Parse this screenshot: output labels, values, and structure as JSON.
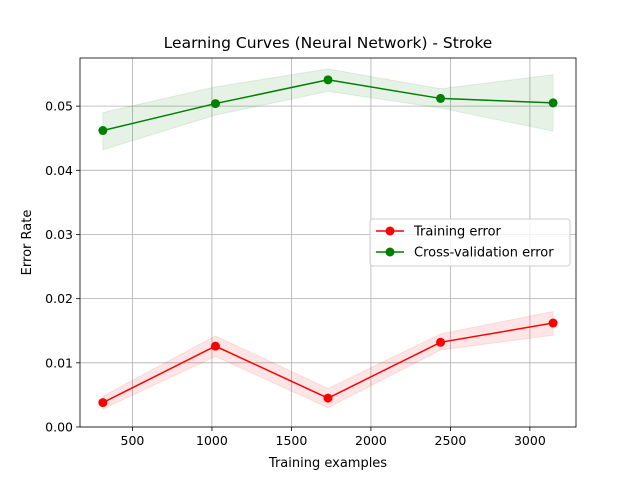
{
  "chart_data": {
    "type": "line",
    "title": "Learning Curves (Neural Network) - Stroke",
    "xlabel": "Training examples",
    "ylabel": "Error Rate",
    "xlim": [
      170,
      3290
    ],
    "ylim": [
      0,
      0.0575
    ],
    "x_ticks": [
      500,
      1000,
      1500,
      2000,
      2500,
      3000
    ],
    "x_tick_labels": [
      "500",
      "1000",
      "1500",
      "2000",
      "2500",
      "3000"
    ],
    "y_ticks": [
      0,
      0.01,
      0.02,
      0.03,
      0.04,
      0.05
    ],
    "y_tick_labels": [
      "0.00",
      "0.01",
      "0.02",
      "0.03",
      "0.04",
      "0.05"
    ],
    "grid": true,
    "legend_position": "center-right",
    "x": [
      314,
      1022,
      1730,
      2438,
      3146
    ],
    "series": [
      {
        "name": "Training error",
        "color": "#ff0000",
        "marker": "circle",
        "values": [
          0.0038,
          0.0126,
          0.0045,
          0.0132,
          0.0162
        ],
        "band_lower": [
          0.0028,
          0.011,
          0.003,
          0.012,
          0.0143
        ],
        "band_upper": [
          0.0048,
          0.0142,
          0.006,
          0.0145,
          0.018
        ]
      },
      {
        "name": "Cross-validation error",
        "color": "#008000",
        "marker": "circle",
        "values": [
          0.0462,
          0.0504,
          0.0541,
          0.0512,
          0.0505
        ],
        "band_lower": [
          0.0432,
          0.0486,
          0.0523,
          0.0497,
          0.0461
        ],
        "band_upper": [
          0.049,
          0.053,
          0.0558,
          0.0527,
          0.0549
        ]
      }
    ]
  }
}
